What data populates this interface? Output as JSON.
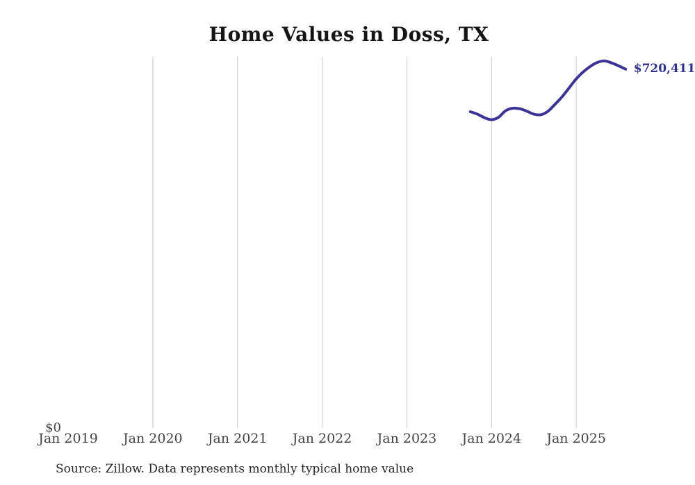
{
  "page": {
    "title": "Home Values in Doss, TX",
    "source_note": "Source: Zillow. Data represents monthly typical home value"
  },
  "axis": {
    "y_zero_label": "$0"
  },
  "colors": {
    "line": "#3b3496",
    "end_label": "#32308f",
    "grid": "#cccccc",
    "tick_label": "#434343",
    "title": "#151515",
    "source": "#262626",
    "background": "#ffffff"
  },
  "chart_data": {
    "type": "line",
    "title": "Home Values in Doss, TX",
    "xlabel": "",
    "ylabel": "",
    "ylim": [
      0,
      745000
    ],
    "grid": "vertical-only",
    "legend": "none",
    "end_label": "$720,411",
    "x_ticks": [
      {
        "label": "Jan 2019",
        "gridline": false
      },
      {
        "label": "Jan 2020",
        "gridline": true
      },
      {
        "label": "Jan 2021",
        "gridline": true
      },
      {
        "label": "Jan 2022",
        "gridline": true
      },
      {
        "label": "Jan 2023",
        "gridline": true
      },
      {
        "label": "Jan 2024",
        "gridline": true
      },
      {
        "label": "Jan 2025",
        "gridline": true
      }
    ],
    "series": [
      {
        "name": "Monthly typical home value",
        "months": [
          "2023-10",
          "2023-11",
          "2023-12",
          "2024-01",
          "2024-02",
          "2024-03",
          "2024-04",
          "2024-05",
          "2024-06",
          "2024-07",
          "2024-08",
          "2024-09",
          "2024-10",
          "2024-11",
          "2024-12",
          "2025-01",
          "2025-02",
          "2025-03",
          "2025-04",
          "2025-05",
          "2025-06",
          "2025-07",
          "2025-08"
        ],
        "values": [
          635000,
          630000,
          623000,
          619000,
          624000,
          637000,
          642000,
          641000,
          636000,
          630000,
          629000,
          636000,
          650000,
          665000,
          683000,
          701000,
          715000,
          726000,
          734000,
          737000,
          733000,
          727000,
          720411
        ]
      }
    ]
  }
}
